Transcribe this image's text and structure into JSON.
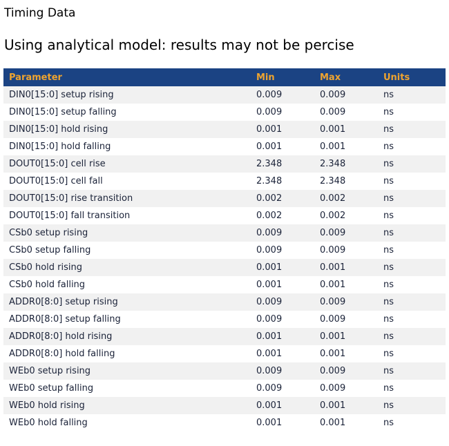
{
  "page": {
    "title": "Timing Data",
    "subtitle": "Using analytical model: results may not be percise"
  },
  "table": {
    "columns": {
      "parameter": "Parameter",
      "min": "Min",
      "max": "Max",
      "units": "Units"
    },
    "rows": [
      {
        "parameter": "DIN0[15:0] setup rising",
        "min": "0.009",
        "max": "0.009",
        "units": "ns"
      },
      {
        "parameter": "DIN0[15:0] setup falling",
        "min": "0.009",
        "max": "0.009",
        "units": "ns"
      },
      {
        "parameter": "DIN0[15:0] hold rising",
        "min": "0.001",
        "max": "0.001",
        "units": "ns"
      },
      {
        "parameter": "DIN0[15:0] hold falling",
        "min": "0.001",
        "max": "0.001",
        "units": "ns"
      },
      {
        "parameter": "DOUT0[15:0] cell rise",
        "min": "2.348",
        "max": "2.348",
        "units": "ns"
      },
      {
        "parameter": "DOUT0[15:0] cell fall",
        "min": "2.348",
        "max": "2.348",
        "units": "ns"
      },
      {
        "parameter": "DOUT0[15:0] rise transition",
        "min": "0.002",
        "max": "0.002",
        "units": "ns"
      },
      {
        "parameter": "DOUT0[15:0] fall transition",
        "min": "0.002",
        "max": "0.002",
        "units": "ns"
      },
      {
        "parameter": "CSb0 setup rising",
        "min": "0.009",
        "max": "0.009",
        "units": "ns"
      },
      {
        "parameter": "CSb0 setup falling",
        "min": "0.009",
        "max": "0.009",
        "units": "ns"
      },
      {
        "parameter": "CSb0 hold rising",
        "min": "0.001",
        "max": "0.001",
        "units": "ns"
      },
      {
        "parameter": "CSb0 hold falling",
        "min": "0.001",
        "max": "0.001",
        "units": "ns"
      },
      {
        "parameter": "ADDR0[8:0] setup rising",
        "min": "0.009",
        "max": "0.009",
        "units": "ns"
      },
      {
        "parameter": "ADDR0[8:0] setup falling",
        "min": "0.009",
        "max": "0.009",
        "units": "ns"
      },
      {
        "parameter": "ADDR0[8:0] hold rising",
        "min": "0.001",
        "max": "0.001",
        "units": "ns"
      },
      {
        "parameter": "ADDR0[8:0] hold falling",
        "min": "0.001",
        "max": "0.001",
        "units": "ns"
      },
      {
        "parameter": "WEb0 setup rising",
        "min": "0.009",
        "max": "0.009",
        "units": "ns"
      },
      {
        "parameter": "WEb0 setup falling",
        "min": "0.009",
        "max": "0.009",
        "units": "ns"
      },
      {
        "parameter": "WEb0 hold rising",
        "min": "0.001",
        "max": "0.001",
        "units": "ns"
      },
      {
        "parameter": "WEb0 hold falling",
        "min": "0.001",
        "max": "0.001",
        "units": "ns"
      }
    ]
  },
  "colors": {
    "header_bg": "#1B4383",
    "header_text": "#EFA42F",
    "row_alt_bg": "#F1F1F1",
    "body_text": "#1A2238",
    "heading_text": "#000000",
    "page_bg": "#FFFFFF"
  }
}
